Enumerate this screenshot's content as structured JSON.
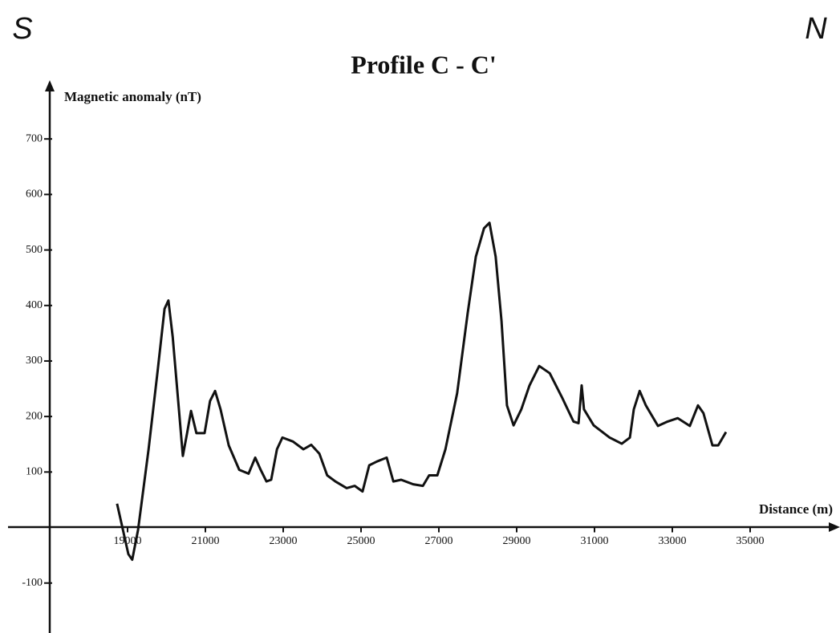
{
  "chart_data": {
    "type": "line",
    "title": "Profile C - C'",
    "annotations": [
      "S",
      "N"
    ],
    "xlabel": "Distance (m)",
    "ylabel": "Magnetic anomaly (nT)",
    "x": [
      18730,
      19020,
      19120,
      19270,
      19540,
      19780,
      19950,
      20050,
      20160,
      20300,
      20420,
      20530,
      20630,
      20770,
      20980,
      21120,
      21250,
      21390,
      21600,
      21870,
      22110,
      22280,
      22420,
      22570,
      22690,
      22840,
      22980,
      23250,
      23520,
      23720,
      23930,
      24130,
      24340,
      24630,
      24840,
      25040,
      25210,
      25410,
      25660,
      25830,
      26030,
      26340,
      26590,
      26750,
      26960,
      27170,
      27470,
      27740,
      27950,
      28160,
      28300,
      28460,
      28610,
      28750,
      28920,
      29120,
      29330,
      29580,
      29850,
      30160,
      30460,
      30590,
      30670,
      30730,
      30980,
      31390,
      31700,
      31910,
      32010,
      32160,
      32320,
      32630,
      32880,
      33140,
      33450,
      33660,
      33800,
      34030,
      34180,
      34380
    ],
    "series": [
      {
        "name": "Magnetic anomaly",
        "color": "#111111",
        "values": [
          43,
          -48,
          -58,
          -4,
          141,
          286,
          394,
          409,
          343,
          228,
          129,
          170,
          210,
          170,
          170,
          228,
          246,
          213,
          148,
          104,
          97,
          126,
          104,
          83,
          86,
          141,
          162,
          155,
          141,
          149,
          133,
          94,
          83,
          71,
          75,
          65,
          112,
          119,
          126,
          83,
          86,
          78,
          75,
          94,
          94,
          141,
          242,
          386,
          488,
          539,
          549,
          488,
          372,
          220,
          184,
          213,
          256,
          291,
          278,
          235,
          191,
          188,
          256,
          213,
          184,
          162,
          151,
          162,
          213,
          246,
          220,
          183,
          191,
          197,
          183,
          220,
          206,
          148,
          148,
          172
        ]
      }
    ],
    "xlim": [
      17000,
      37200
    ],
    "ylim": [
      -190,
      800
    ],
    "xticks": [
      19000,
      21000,
      23000,
      25000,
      27000,
      29000,
      31000,
      33000,
      35000
    ],
    "yticks": [
      -100,
      100,
      200,
      300,
      400,
      500,
      600,
      700
    ]
  }
}
